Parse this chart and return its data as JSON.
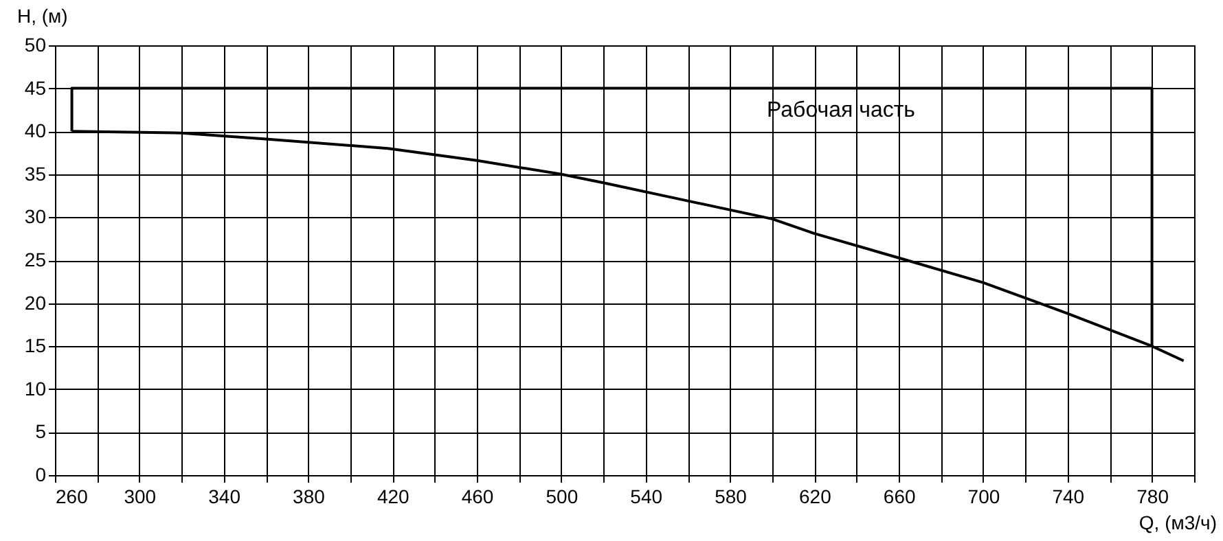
{
  "chart_data": {
    "type": "line",
    "xlabel": "Q, (м3/ч)",
    "ylabel": "H, (м)",
    "xlim": [
      260,
      800
    ],
    "ylim": [
      0,
      50
    ],
    "xticks": [
      260,
      {
        "value": 280,
        "label": null
      },
      300,
      {
        "value": 320,
        "label": null
      },
      340,
      {
        "value": 360,
        "label": null
      },
      380,
      {
        "value": 400,
        "label": null
      },
      420,
      {
        "value": 440,
        "label": null
      },
      460,
      {
        "value": 480,
        "label": null
      },
      500,
      {
        "value": 520,
        "label": null
      },
      540,
      {
        "value": 560,
        "label": null
      },
      580,
      {
        "value": 600,
        "label": null
      },
      620,
      {
        "value": 640,
        "label": null
      },
      660,
      {
        "value": 680,
        "label": null
      },
      700,
      {
        "value": 720,
        "label": null
      },
      740,
      {
        "value": 760,
        "label": null
      },
      780,
      {
        "value": 800,
        "label": null
      }
    ],
    "yticks": [
      0,
      5,
      10,
      15,
      20,
      25,
      30,
      35,
      40,
      45,
      50
    ],
    "grid": true,
    "series": [
      {
        "color": "#000000",
        "x": [
          268,
          320,
          360,
          418,
          460,
          500,
          520,
          560,
          600,
          620,
          661,
          700,
          740,
          780,
          795
        ],
        "values": [
          40,
          39.8,
          39.1,
          38,
          36.6,
          35,
          34,
          31.9,
          29.8,
          28.1,
          25.2,
          22.4,
          18.8,
          15,
          13.3
        ]
      },
      {
        "color": "#000000",
        "x": [
          268,
          268,
          780,
          780
        ],
        "values": [
          40,
          45,
          45,
          15
        ]
      }
    ],
    "annotations": [
      "Рабочая часть"
    ]
  }
}
